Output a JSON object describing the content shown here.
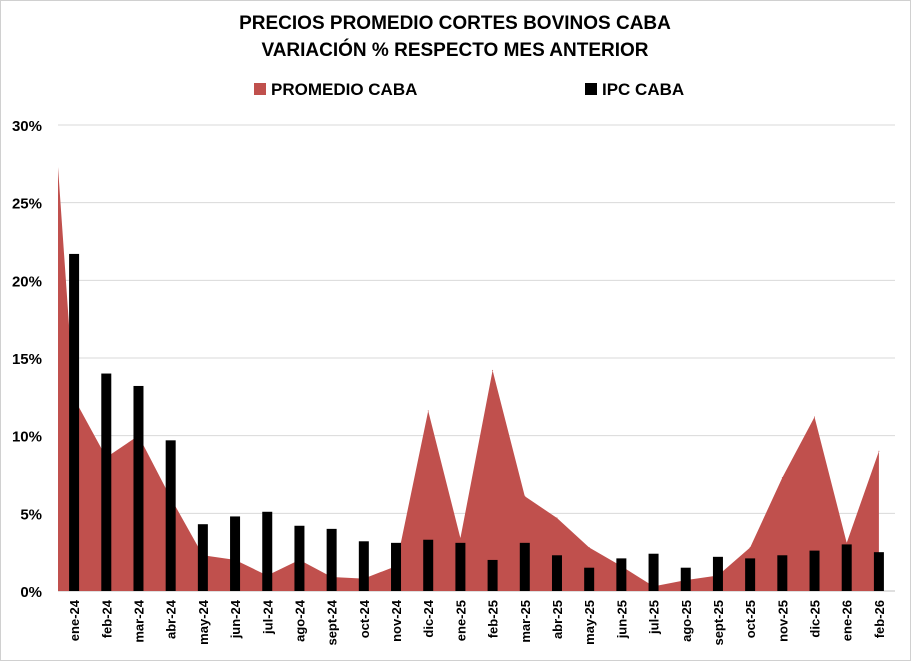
{
  "chart_data": {
    "type": "area+bar",
    "title": [
      "PRECIOS PROMEDIO CORTES BOVINOS CABA",
      "VARIACIÓN % RESPECTO MES ANTERIOR"
    ],
    "legend_position": "top",
    "grid": true,
    "ylim": [
      0,
      30
    ],
    "yticks": [
      0,
      5,
      10,
      15,
      20,
      25,
      30
    ],
    "ytick_labels": [
      "0%",
      "5%",
      "10%",
      "15%",
      "20%",
      "25%",
      "30%"
    ],
    "categories": [
      "ene-24",
      "feb-24",
      "mar-24",
      "abr-24",
      "may-24",
      "jun-24",
      "jul-24",
      "ago-24",
      "sept-24",
      "oct-24",
      "nov-24",
      "dic-24",
      "ene-25",
      "feb-25",
      "mar-25",
      "abr-25",
      "may-25",
      "jun-25",
      "jul-25",
      "ago-25",
      "sept-25",
      "oct-25",
      "nov-25",
      "dic-25",
      "ene-26",
      "feb-26"
    ],
    "area_start_value": 27.3,
    "series": [
      {
        "name": "PROMEDIO CABA",
        "type": "area",
        "color": "#c0504d",
        "values": [
          12.4,
          8.6,
          10.0,
          6.0,
          2.3,
          2.0,
          1.0,
          2.0,
          0.9,
          0.8,
          1.6,
          11.6,
          3.4,
          14.2,
          6.1,
          4.7,
          2.8,
          1.6,
          0.3,
          0.7,
          1.0,
          2.8,
          7.3,
          11.2,
          3.1,
          9.0
        ]
      },
      {
        "name": "IPC CABA",
        "type": "bar",
        "color": "#000000",
        "values": [
          21.7,
          14.0,
          13.2,
          9.7,
          4.3,
          4.8,
          5.1,
          4.2,
          4.0,
          3.2,
          3.1,
          3.3,
          3.1,
          2.0,
          3.1,
          2.3,
          1.5,
          2.1,
          2.4,
          1.5,
          2.2,
          2.1,
          2.3,
          2.6,
          3.0,
          2.5
        ]
      }
    ]
  }
}
